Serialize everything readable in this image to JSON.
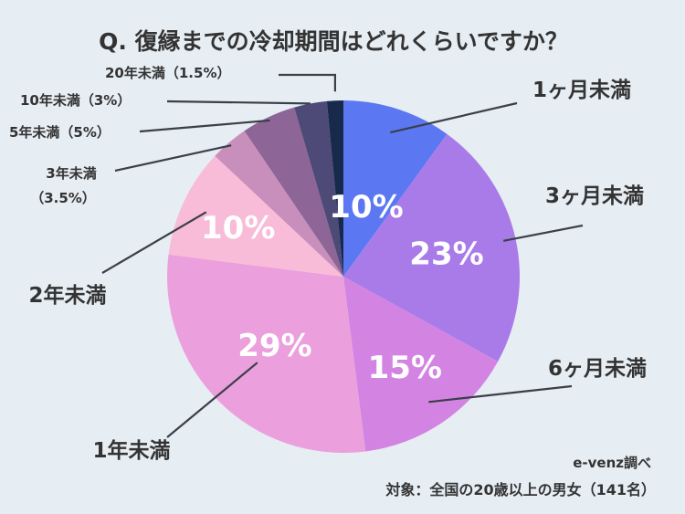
{
  "chart_data": {
    "type": "pie",
    "title": "Q. 復縁までの冷却期間はどれくらいですか？",
    "slices": [
      {
        "label": "1ヶ月未満",
        "value": 10,
        "value_label": "10%",
        "color": "#5b78f2"
      },
      {
        "label": "3ヶ月未満",
        "value": 23,
        "value_label": "23%",
        "color": "#a97be9"
      },
      {
        "label": "6ヶ月未満",
        "value": 15,
        "value_label": "15%",
        "color": "#d384e3"
      },
      {
        "label": "1年未満",
        "value": 29,
        "value_label": "29%",
        "color": "#eba0dd"
      },
      {
        "label": "2年未満",
        "value": 10,
        "value_label": "10%",
        "color": "#f8bcd8"
      },
      {
        "label": "3年未満",
        "label_line2": "（3.5%）",
        "value": 3.5,
        "value_label": "",
        "color": "#c98fbc"
      },
      {
        "label": "5年未満（5%）",
        "value": 5,
        "value_label": "",
        "color": "#8d6596"
      },
      {
        "label": "10年未満（3%）",
        "value": 3,
        "value_label": "",
        "color": "#4e4a78"
      },
      {
        "label": "20年未満（1.5%）",
        "value": 1.5,
        "value_label": "",
        "color": "#182a4c"
      }
    ],
    "source": "e-venz調べ",
    "note": "対象：全国の20歳以上の男女（141名）"
  }
}
